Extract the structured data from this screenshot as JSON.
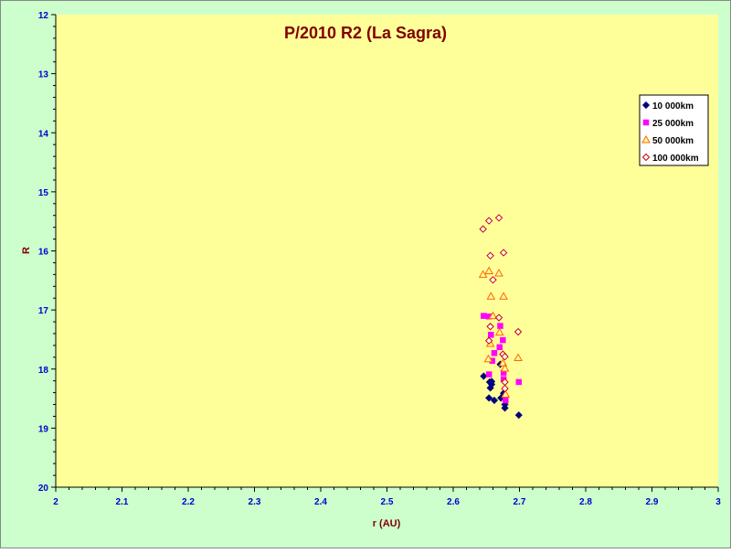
{
  "chart_data": {
    "type": "scatter",
    "title": "P/2010 R2 (La Sagra)",
    "xlabel": "r (AU)",
    "ylabel": "R",
    "xlim": [
      2,
      3
    ],
    "ylim": [
      12,
      20
    ],
    "y_inverted": true,
    "x_ticks": [
      "2",
      "2.1",
      "2.2",
      "2.3",
      "2.4",
      "2.5",
      "2.6",
      "2.7",
      "2.8",
      "2.9",
      "3"
    ],
    "y_ticks": [
      "12",
      "13",
      "14",
      "15",
      "16",
      "17",
      "18",
      "19",
      "20"
    ],
    "grid": false,
    "legend_position": "right",
    "colors": {
      "outer_background": "#ccffcc",
      "plot_background": "#ffff99",
      "title": "#800000",
      "axis_label": "#800000",
      "tick_label": "#0000cc",
      "axis_line": "#000000"
    },
    "series": [
      {
        "name": "10 000km",
        "marker": "diamond-filled",
        "color": "#000080",
        "points": [
          [
            2.646,
            18.12
          ],
          [
            2.655,
            18.22
          ],
          [
            2.656,
            18.32
          ],
          [
            2.658,
            18.26
          ],
          [
            2.658,
            18.21
          ],
          [
            2.654,
            18.49
          ],
          [
            2.662,
            18.53
          ],
          [
            2.671,
            17.92
          ],
          [
            2.672,
            18.49
          ],
          [
            2.676,
            18.41
          ],
          [
            2.678,
            18.6
          ],
          [
            2.678,
            18.66
          ],
          [
            2.699,
            18.78
          ]
        ]
      },
      {
        "name": "25 000km",
        "marker": "square-filled",
        "color": "#ff00ff",
        "points": [
          [
            2.646,
            17.1
          ],
          [
            2.654,
            17.11
          ],
          [
            2.657,
            17.42
          ],
          [
            2.659,
            17.86
          ],
          [
            2.662,
            17.73
          ],
          [
            2.671,
            17.27
          ],
          [
            2.67,
            17.63
          ],
          [
            2.675,
            17.51
          ],
          [
            2.676,
            18.06
          ],
          [
            2.676,
            18.17
          ],
          [
            2.679,
            18.53
          ],
          [
            2.654,
            18.09
          ],
          [
            2.699,
            18.22
          ]
        ]
      },
      {
        "name": "50 000km",
        "marker": "triangle-open",
        "color": "#ff6600",
        "points": [
          [
            2.645,
            16.4
          ],
          [
            2.654,
            16.34
          ],
          [
            2.657,
            16.77
          ],
          [
            2.656,
            17.57
          ],
          [
            2.66,
            17.1
          ],
          [
            2.669,
            16.38
          ],
          [
            2.676,
            16.77
          ],
          [
            2.67,
            17.38
          ],
          [
            2.653,
            17.83
          ],
          [
            2.675,
            17.9
          ],
          [
            2.678,
            17.99
          ],
          [
            2.679,
            18.43
          ],
          [
            2.698,
            17.81
          ]
        ]
      },
      {
        "name": "100 000km",
        "marker": "diamond-open",
        "color": "#cc0000",
        "points": [
          [
            2.645,
            15.63
          ],
          [
            2.654,
            15.49
          ],
          [
            2.669,
            15.44
          ],
          [
            2.656,
            16.08
          ],
          [
            2.676,
            16.03
          ],
          [
            2.66,
            16.49
          ],
          [
            2.669,
            17.13
          ],
          [
            2.656,
            17.28
          ],
          [
            2.654,
            17.52
          ],
          [
            2.675,
            17.75
          ],
          [
            2.678,
            17.79
          ],
          [
            2.678,
            18.22
          ],
          [
            2.678,
            18.33
          ],
          [
            2.698,
            17.37
          ]
        ]
      }
    ]
  }
}
